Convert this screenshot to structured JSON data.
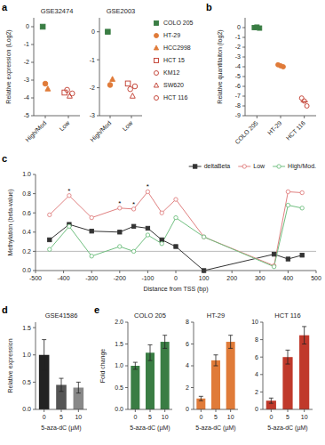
{
  "chart_data": [
    {
      "type": "scatter",
      "title": "GSE32474",
      "ylabel": "Relative expression (Log2)",
      "categories": [
        "High/Mod",
        "Low"
      ],
      "series": [
        {
          "name": "COLO 205",
          "color": "#3a7d44",
          "marker": "square",
          "values": [
            0.0,
            null
          ]
        },
        {
          "name": "HT-29",
          "color": "#e07b39",
          "marker": "circle",
          "values": [
            -3.2,
            null
          ]
        },
        {
          "name": "HCC2998",
          "color": "#e07b39",
          "marker": "triangle",
          "values": [
            -3.5,
            null
          ]
        },
        {
          "name": "HCT 15",
          "color": "#c0392b",
          "marker": "open-square",
          "values": [
            null,
            -3.7
          ]
        },
        {
          "name": "KM12",
          "color": "#c0392b",
          "marker": "open-circle",
          "values": [
            null,
            -3.55
          ]
        },
        {
          "name": "SW620",
          "color": "#c0392b",
          "marker": "open-triangle",
          "values": [
            null,
            -3.9
          ]
        },
        {
          "name": "HCT 116",
          "color": "#c0392b",
          "marker": "open-circle",
          "values": [
            null,
            -3.75
          ]
        }
      ],
      "ylim": [
        -5,
        0.5
      ],
      "yticks": [
        0,
        -1,
        -2,
        -3,
        -4,
        -5
      ],
      "annotations": [
        {
          "text": "a"
        }
      ]
    },
    {
      "type": "scatter",
      "title": "GSE2003",
      "categories": [
        "High/Mod",
        "Low"
      ],
      "series": [
        {
          "color": "#3a7d44",
          "marker": "square",
          "values": [
            0.0,
            null
          ]
        },
        {
          "color": "#e07b39",
          "marker": "circle",
          "values": [
            -1.9,
            null
          ]
        },
        {
          "color": "#e07b39",
          "marker": "triangle",
          "values": [
            -1.7,
            null
          ]
        },
        {
          "color": "#c0392b",
          "marker": "open-square",
          "values": [
            null,
            -1.85
          ]
        },
        {
          "color": "#c0392b",
          "marker": "open-circle",
          "values": [
            null,
            -2.05
          ]
        },
        {
          "color": "#c0392b",
          "marker": "open-triangle",
          "values": [
            null,
            -2.3
          ]
        },
        {
          "color": "#c0392b",
          "marker": "open-circle",
          "values": [
            null,
            -1.95
          ]
        }
      ],
      "ylim": [
        -3,
        0.5
      ],
      "yticks": [
        0,
        -1,
        -2,
        -3
      ]
    },
    {
      "type": "scatter",
      "ylabel": "Relative quantitaiton (log2)",
      "categories": [
        "COLO 205",
        "HT-29",
        "HCT 116"
      ],
      "colors": [
        "#3a7d44",
        "#e07b39",
        "#c0392b"
      ],
      "markers": [
        "square",
        "circle",
        "open-circle"
      ],
      "series": [
        {
          "values": [
            0.0,
            -3.8,
            -7.2
          ]
        },
        {
          "values": [
            0.05,
            -3.9,
            -7.5
          ]
        },
        {
          "values": [
            -0.05,
            -4.0,
            -8.0
          ]
        }
      ],
      "means": [
        0.0,
        -3.9,
        -7.566666666666667
      ],
      "ylim": [
        -9,
        1
      ],
      "yticks": [
        0,
        -1,
        -2,
        -3,
        -4,
        -5,
        -6,
        -7,
        -8,
        -9
      ],
      "annotations": [
        {
          "text": "b"
        }
      ]
    },
    {
      "type": "line",
      "xlabel": "Distance from TSS (bp)",
      "ylabel": "Methylation (beta-value)",
      "x": [
        -450,
        -380,
        -300,
        -200,
        -150,
        -100,
        -50,
        0,
        100,
        350,
        400,
        450
      ],
      "series": [
        {
          "name": "deltaBeta",
          "color": "#333333",
          "marker": "square",
          "values": [
            0.32,
            0.48,
            0.41,
            0.4,
            0.46,
            0.44,
            0.32,
            0.25,
            0.0,
            0.17,
            0.12,
            0.16
          ]
        },
        {
          "name": "Low",
          "color": "#e08080",
          "marker": "open-circle",
          "values": [
            0.58,
            0.78,
            0.55,
            0.65,
            0.64,
            0.82,
            0.6,
            0.74,
            0.35,
            0.05,
            0.82,
            0.81
          ]
        },
        {
          "name": "High/Mod.",
          "color": "#70bf80",
          "marker": "open-circle",
          "values": [
            0.22,
            0.46,
            0.15,
            0.25,
            0.2,
            0.37,
            0.28,
            0.55,
            0.35,
            0.04,
            0.68,
            0.65
          ]
        }
      ],
      "reference_line": 0.2,
      "xlim": [
        -500,
        500
      ],
      "xticks": [
        -500,
        -400,
        -300,
        -200,
        -100,
        0,
        100,
        200,
        300,
        400,
        500
      ],
      "ylim": [
        0,
        1.0
      ],
      "yticks": [
        {
          "value": 0.0,
          "label": "0.0"
        },
        0.2,
        0.4,
        0.6,
        0.8,
        {
          "value": 1.0,
          "label": "1.0"
        }
      ],
      "legend": "upper right",
      "annotations": [
        {
          "text": "c"
        },
        {
          "text": "*",
          "series": 1,
          "index": 1
        },
        {
          "text": "*",
          "series": 1,
          "index": 3
        },
        {
          "text": "*",
          "series": 1,
          "index": 4
        },
        {
          "text": "*",
          "series": 1,
          "index": 5
        }
      ]
    },
    {
      "type": "bar",
      "title": "GSE41586",
      "xlabel": "5-aza-dC (µM)",
      "ylabel": "Relative expression",
      "categories": [
        "0",
        "5",
        "10"
      ],
      "values": [
        1.0,
        0.45,
        0.4
      ],
      "errors": [
        0.28,
        0.12,
        0.1
      ],
      "colors": [
        "#222222",
        "#555555",
        "#888888"
      ],
      "ylim": [
        0,
        1.6
      ],
      "yticks": [
        {
          "value": 0.0,
          "label": "0.0"
        },
        0.5,
        {
          "value": 1.0,
          "label": "1.0"
        },
        1.5
      ],
      "annotations": [
        {
          "text": "d"
        }
      ]
    },
    {
      "type": "bar",
      "title": "COLO 205",
      "xlabel": "5-aza-dC (µM)",
      "ylabel": "Fold change",
      "categories": [
        "0",
        "5",
        "10"
      ],
      "values": [
        1.0,
        1.3,
        1.55
      ],
      "errors": [
        0.08,
        0.18,
        0.15
      ],
      "colors": [
        "#3a7d44",
        "#3a7d44",
        "#3a7d44"
      ],
      "ylim": [
        0.0,
        2.0
      ],
      "yticks": [
        {
          "value": 0.0,
          "label": "0.0"
        },
        0.5,
        {
          "value": 1.0,
          "label": "1.0"
        },
        1.5,
        {
          "value": 2.0,
          "label": "2.0"
        }
      ],
      "annotations": [
        {
          "text": "e"
        }
      ]
    },
    {
      "type": "bar",
      "title": "HT-29",
      "xlabel": "5-aza-dC (µM)",
      "categories": [
        "0",
        "5",
        "10"
      ],
      "values": [
        1.0,
        4.5,
        6.2
      ],
      "errors": [
        0.2,
        0.5,
        0.6
      ],
      "colors": [
        "#e07b39",
        "#e07b39",
        "#e07b39"
      ],
      "ylim": [
        0.0,
        8.0
      ],
      "yticks": [
        0,
        2,
        4,
        6,
        8
      ]
    },
    {
      "type": "bar",
      "title": "HCT 116",
      "xlabel": "5-aza-dC (µM)",
      "categories": [
        "0",
        "5",
        "10"
      ],
      "values": [
        1.0,
        6.0,
        8.5
      ],
      "errors": [
        0.3,
        0.8,
        1.0
      ],
      "colors": [
        "#c0392b",
        "#c0392b",
        "#c0392b"
      ],
      "ylim": [
        0.0,
        10.0
      ],
      "yticks": [
        0,
        2,
        4,
        6,
        8,
        10
      ]
    }
  ]
}
